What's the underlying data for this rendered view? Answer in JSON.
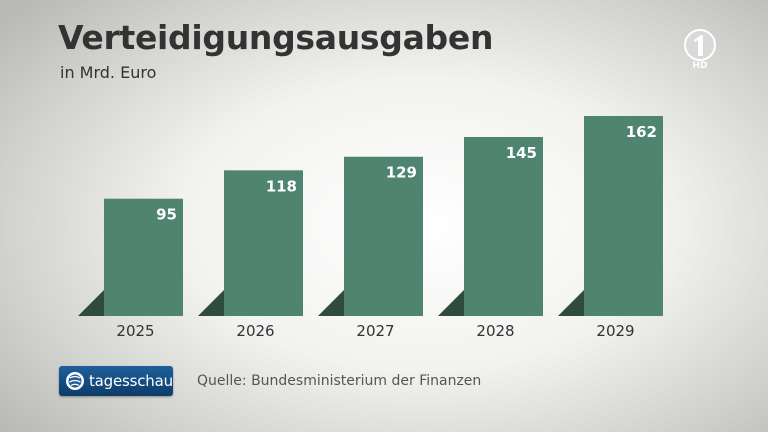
{
  "header": {
    "title": "Verteidigungsausgaben",
    "subtitle": "in Mrd. Euro"
  },
  "channel_logo": {
    "icon": "ard-one-logo-icon",
    "hd_label": "HD"
  },
  "footer": {
    "brand_label": "tagesschau",
    "brand_icon": "tagesschau-globe-icon",
    "source": "Quelle: Bundesministerium der Finanzen"
  },
  "colors": {
    "bar": "#4e8470",
    "bar_shadow": "#2f4a3f",
    "text": "#333333",
    "brand_blue": "#1e5f9b"
  },
  "chart_data": {
    "type": "bar",
    "categories": [
      "2025",
      "2026",
      "2027",
      "2028",
      "2029"
    ],
    "values": [
      95,
      118,
      129,
      145,
      162
    ],
    "title": "Verteidigungsausgaben",
    "subtitle": "in Mrd. Euro",
    "xlabel": "",
    "ylabel": "",
    "ylim": [
      0,
      162
    ],
    "grid": false,
    "legend": "none",
    "data_labels": true
  }
}
